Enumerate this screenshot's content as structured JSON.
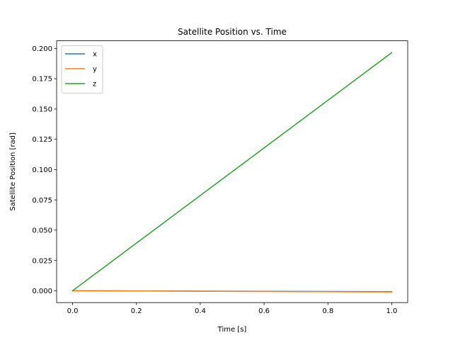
{
  "chart_data": {
    "type": "line",
    "title": "Satellite Position vs. Time",
    "xlabel": "Time [s]",
    "ylabel": "Satellite Position [rad]",
    "xlim": [
      -0.05,
      1.05
    ],
    "ylim": [
      -0.0098,
      0.2063
    ],
    "xticks": [
      0.0,
      0.2,
      0.4,
      0.6,
      0.8,
      1.0
    ],
    "xtick_labels": [
      "0.0",
      "0.2",
      "0.4",
      "0.6",
      "0.8",
      "1.0"
    ],
    "yticks": [
      0.0,
      0.025,
      0.05,
      0.075,
      0.1,
      0.125,
      0.15,
      0.175,
      0.2
    ],
    "ytick_labels": [
      "0.000",
      "0.025",
      "0.050",
      "0.075",
      "0.100",
      "0.125",
      "0.150",
      "0.175",
      "0.200"
    ],
    "grid": false,
    "legend_position": "top-left",
    "series": [
      {
        "name": "x",
        "color": "#1f77b4",
        "x": [
          0.0,
          1.0
        ],
        "y": [
          0.0,
          -0.0008
        ]
      },
      {
        "name": "y",
        "color": "#ff7f0e",
        "x": [
          0.0,
          1.0
        ],
        "y": [
          0.0,
          -0.001
        ]
      },
      {
        "name": "z",
        "color": "#2ca02c",
        "x": [
          0.0,
          1.0
        ],
        "y": [
          0.0,
          0.1965
        ]
      }
    ]
  }
}
